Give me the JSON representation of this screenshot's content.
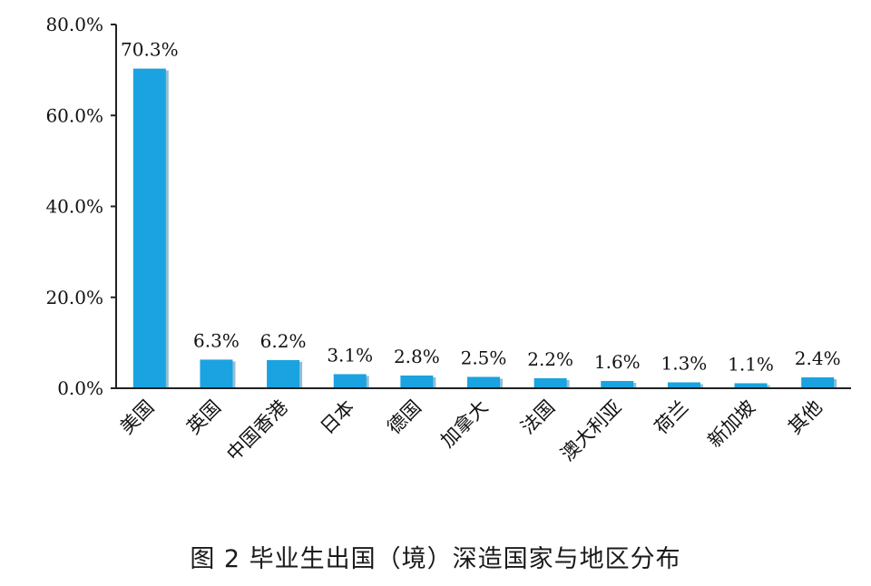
{
  "caption": "图 2  毕业生出国（境）深造国家与地区分布",
  "chart_data": {
    "type": "bar",
    "title": "",
    "xlabel": "",
    "ylabel": "",
    "categories": [
      "美国",
      "英国",
      "中国香港",
      "日本",
      "德国",
      "加拿大",
      "法国",
      "澳大利亚",
      "荷兰",
      "新加坡",
      "其他"
    ],
    "values": [
      70.3,
      6.3,
      6.2,
      3.1,
      2.8,
      2.5,
      2.2,
      1.6,
      1.3,
      1.1,
      2.4
    ],
    "data_labels": [
      "70.3%",
      "6.3%",
      "6.2%",
      "3.1%",
      "2.8%",
      "2.5%",
      "2.2%",
      "1.6%",
      "1.3%",
      "1.1%",
      "2.4%"
    ],
    "ylim": [
      0,
      80
    ],
    "yticks": [
      0,
      20,
      40,
      60,
      80
    ],
    "ytick_labels": [
      "0.0%",
      "20.0%",
      "40.0%",
      "60.0%",
      "80.0%"
    ],
    "grid": false,
    "legend": "none",
    "bar_color": "#1aa3e0",
    "bar_shadow_color": "#0d6fa0"
  }
}
